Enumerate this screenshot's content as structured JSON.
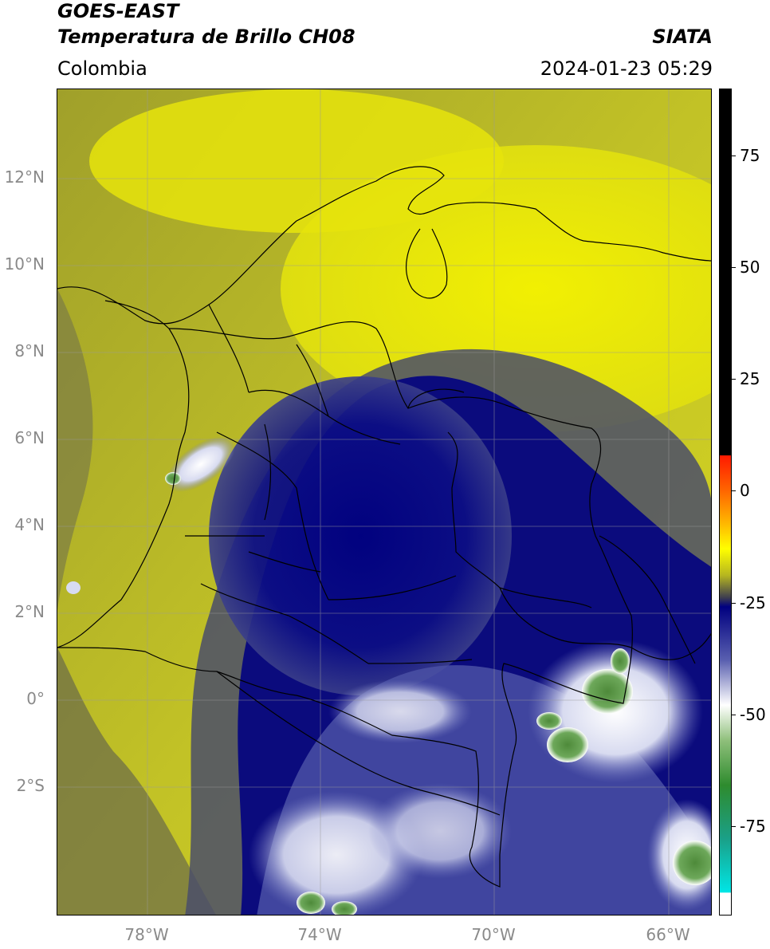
{
  "header": {
    "satellite": "GOES-EAST",
    "product": "Temperatura de Brillo CH08",
    "agency": "SIATA",
    "region": "Colombia",
    "datetime": "2024-01-23 05:29"
  },
  "map": {
    "lat_ticks": [
      "12°N",
      "10°N",
      "8°N",
      "6°N",
      "4°N",
      "2°N",
      "0°",
      "2°S"
    ],
    "lon_ticks": [
      "78°W",
      "74°W",
      "70°W",
      "66°W"
    ],
    "extent": {
      "west": -80.1,
      "east": -65.1,
      "south": -5.2,
      "north": 14.0
    },
    "features": [
      "coastline",
      "country-borders",
      "department-borders",
      "gridlines"
    ],
    "dominant_colors": {
      "warm_low_level": "#c8c820",
      "moist_mid_level": "#3a3f8c",
      "deep_moist": "#0b0b7d",
      "cold_cloud_tops": "#ffffff",
      "coldest_tops": "#2e8b3a"
    }
  },
  "colorbar": {
    "labels": [
      "75",
      "50",
      "25",
      "0",
      "-25",
      "-50",
      "-75"
    ],
    "values": [
      75,
      50,
      25,
      0,
      -25,
      -50,
      -75
    ],
    "range": [
      -95,
      90
    ],
    "stops": [
      {
        "v": 90,
        "c": "#000000"
      },
      {
        "v": 8,
        "c": "#000000"
      },
      {
        "v": 7.9,
        "c": "#ff1a00"
      },
      {
        "v": 0,
        "c": "#ff6600"
      },
      {
        "v": -8,
        "c": "#ffc000"
      },
      {
        "v": -13,
        "c": "#ffff00"
      },
      {
        "v": -19,
        "c": "#b5b520"
      },
      {
        "v": -24,
        "c": "#3c3c50"
      },
      {
        "v": -26,
        "c": "#000080"
      },
      {
        "v": -38,
        "c": "#5a60b0"
      },
      {
        "v": -48,
        "c": "#ffffff"
      },
      {
        "v": -56,
        "c": "#8ebf7a"
      },
      {
        "v": -66,
        "c": "#2e8b2e"
      },
      {
        "v": -78,
        "c": "#1aa088"
      },
      {
        "v": -90,
        "c": "#00e6e6"
      },
      {
        "v": -90.1,
        "c": "#ffffff"
      },
      {
        "v": -95,
        "c": "#ffffff"
      }
    ]
  }
}
